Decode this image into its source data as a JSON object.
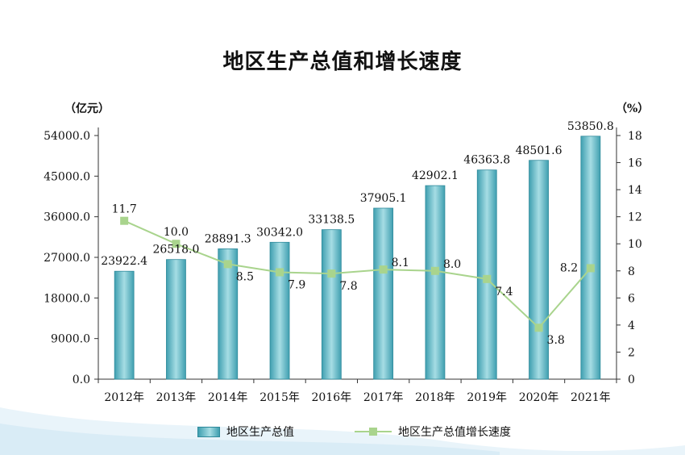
{
  "page": {
    "title": "地区生产总值和增长速度",
    "left_unit": "（亿元）",
    "right_unit": "（%）"
  },
  "chart_data": {
    "type": "bar",
    "title": "地区生产总值和增长速度",
    "categories": [
      "2012年",
      "2013年",
      "2014年",
      "2015年",
      "2016年",
      "2017年",
      "2018年",
      "2019年",
      "2020年",
      "2021年"
    ],
    "series": [
      {
        "name": "地区生产总值",
        "type": "bar",
        "axis": "left",
        "values": [
          23922.4,
          26518.0,
          28891.3,
          30342.0,
          33138.5,
          37905.1,
          42902.1,
          46363.8,
          48501.6,
          53850.8
        ],
        "labels": [
          "23922.4",
          "26518.0",
          "28891.3",
          "30342.0",
          "33138.5",
          "37905.1",
          "42902.1",
          "46363.8",
          "48501.6",
          "53850.8"
        ],
        "color": "#5fb8c4"
      },
      {
        "name": "地区生产总值增长速度",
        "type": "line",
        "axis": "right",
        "values": [
          11.7,
          10.0,
          8.5,
          7.9,
          7.8,
          8.1,
          8.0,
          7.4,
          3.8,
          8.2
        ],
        "labels": [
          "11.7",
          "10.0",
          "8.5",
          "7.9",
          "7.8",
          "8.1",
          "8.0",
          "7.4",
          "3.8",
          "8.2"
        ],
        "color": "#a9d48d"
      }
    ],
    "y_left": {
      "ylim": [
        0,
        54000
      ],
      "ticks": [
        0,
        9000,
        18000,
        27000,
        36000,
        45000,
        54000
      ],
      "tick_labels": [
        "0.0",
        "9000.0",
        "18000.0",
        "27000.0",
        "36000.0",
        "45000.0",
        "54000.0"
      ]
    },
    "y_right": {
      "ylim": [
        0,
        18
      ],
      "ticks": [
        0,
        2,
        4,
        6,
        8,
        10,
        12,
        14,
        16,
        18
      ],
      "tick_labels": [
        "0",
        "2",
        "4",
        "6",
        "8",
        "10",
        "12",
        "14",
        "16",
        "18"
      ]
    },
    "legend_placement": "bottom",
    "grid": false
  }
}
